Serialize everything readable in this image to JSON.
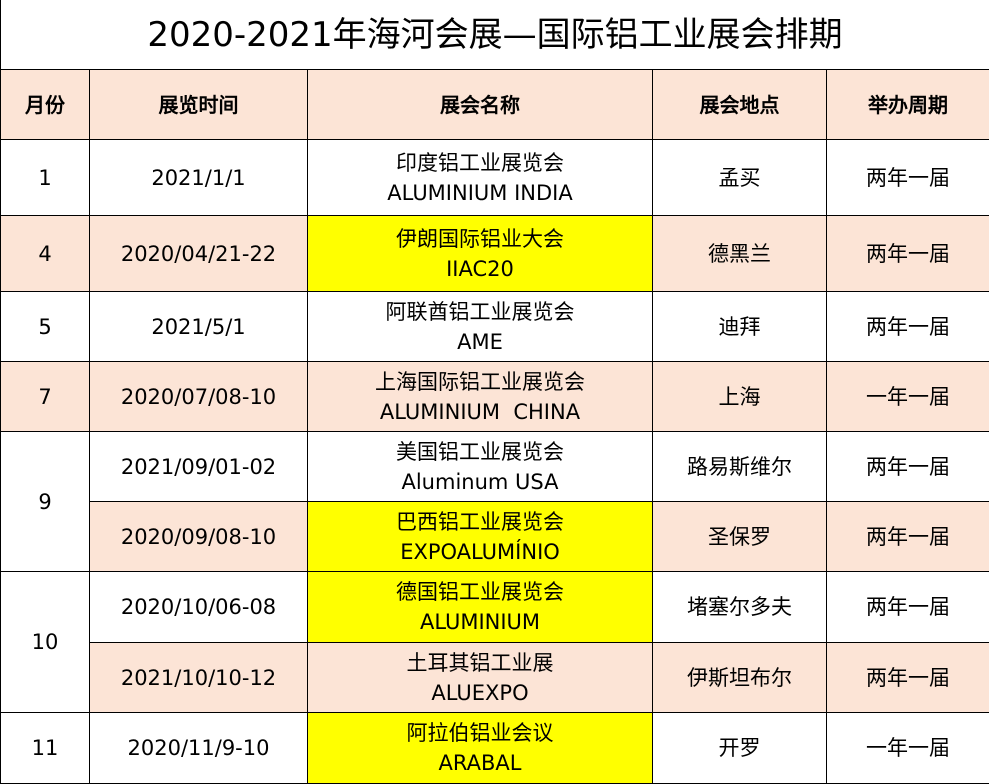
{
  "title": "2020-2021年海河会展—国际铝工业展会排期",
  "headers": [
    "月份",
    "展览时间",
    "展会名称",
    "展会地点",
    "举办周期"
  ],
  "colors": {
    "header_bg": "#fce4d6",
    "alt_row_bg": "#fce4d6",
    "highlight": "#ffff00"
  },
  "rows": [
    {
      "month": "1",
      "date": "2021/1/1",
      "name_cn": "印度铝工业展览会",
      "name_en": "ALUMINIUM INDIA",
      "location": "孟买",
      "cycle": "两年一届",
      "highlight": false
    },
    {
      "month": "4",
      "date": "2020/04/21-22",
      "name_cn": "伊朗国际铝业大会",
      "name_en": "IIAC20",
      "location": "德黑兰",
      "cycle": "两年一届",
      "highlight": true
    },
    {
      "month": "5",
      "date": "2021/5/1",
      "name_cn": "阿联酋铝工业展览会",
      "name_en": "AME",
      "location": "迪拜",
      "cycle": "两年一届",
      "highlight": false
    },
    {
      "month": "7",
      "date": "2020/07/08-10",
      "name_cn": "上海国际铝工业展览会",
      "name_en": "ALUMINIUM  CHINA",
      "location": "上海",
      "cycle": "一年一届",
      "highlight": false
    },
    {
      "month": "9",
      "date": "2021/09/01-02",
      "name_cn": "美国铝工业展览会",
      "name_en": "Aluminum USA",
      "location": "路易斯维尔",
      "cycle": "两年一届",
      "highlight": false
    },
    {
      "month": "9",
      "date": "2020/09/08-10",
      "name_cn": "巴西铝工业展览会",
      "name_en": "EXPOALUMÍNIO",
      "location": "圣保罗",
      "cycle": "两年一届",
      "highlight": true
    },
    {
      "month": "10",
      "date": "2020/10/06-08",
      "name_cn": "德国铝工业展览会",
      "name_en": "ALUMINIUM",
      "location": "堵塞尔多夫",
      "cycle": "两年一届",
      "highlight": true
    },
    {
      "month": "10",
      "date": "2021/10/10-12",
      "name_cn": "土耳其铝工业展",
      "name_en": "ALUEXPO",
      "location": "伊斯坦布尔",
      "cycle": "两年一届",
      "highlight": false
    },
    {
      "month": "11",
      "date": "2020/11/9-10",
      "name_cn": "阿拉伯铝业会议",
      "name_en": "ARABAL",
      "location": "开罗",
      "cycle": "一年一届",
      "highlight": true
    }
  ]
}
